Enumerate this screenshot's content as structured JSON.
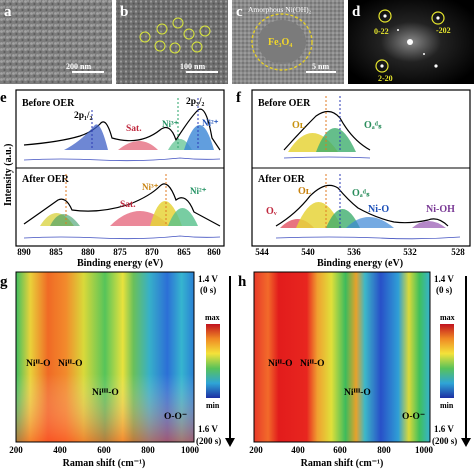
{
  "panels": {
    "a": {
      "label": "a",
      "scalebar": "200 nm"
    },
    "b": {
      "label": "b",
      "scalebar": "100 nm"
    },
    "c": {
      "label": "c",
      "phase_label": "Amorphous Ni(OH)₂",
      "core_label": "Fe₃O₄",
      "scalebar": "5 nm"
    },
    "d": {
      "label": "d",
      "spots": [
        "0-22",
        "-202",
        "2-20"
      ]
    },
    "e": {
      "label": "e",
      "top_title": "Before OER",
      "bottom_title": "After OER",
      "peak_2p12": "2p₁/₂",
      "peak_2p32": "2p₃/₂",
      "sat": "Sat.",
      "ni3": "Ni³⁺",
      "ni2": "Ni²⁺",
      "xlabel": "Binding energy (eV)",
      "ylabel": "Intensity (a.u.)",
      "ticks": [
        "890",
        "885",
        "880",
        "875",
        "870",
        "865",
        "860"
      ]
    },
    "f": {
      "label": "f",
      "top_title": "Before OER",
      "bottom_title": "After OER",
      "OL": "Oʟ",
      "Oads": "Oₐᵈₛ",
      "OV": "Oᵥ",
      "NiO": "Ni-O",
      "NiOH": "Ni-OH",
      "xlabel": "Binding energy (eV)",
      "ticks": [
        "544",
        "540",
        "536",
        "532",
        "528"
      ]
    },
    "g": {
      "label": "g",
      "top_right": "1.4 V",
      "top_right_sub": "(0 s)",
      "bottom_right": "1.6 V",
      "bottom_right_sub": "(200 s)",
      "cb_max": "max",
      "cb_min": "min",
      "ann1": "Niᴵᴵ-O",
      "ann2": "Niᴵᴵ-O",
      "ann3": "Niᴵᴵᴵ-O",
      "ann4": "O-O⁻",
      "xlabel": "Raman shift (cm⁻¹)",
      "ticks": [
        "200",
        "400",
        "600",
        "800",
        "1000"
      ]
    },
    "h": {
      "label": "h",
      "top_right": "1.4 V",
      "top_right_sub": "(0 s)",
      "bottom_right": "1.6 V",
      "bottom_right_sub": "(200 s)",
      "cb_max": "max",
      "cb_min": "min",
      "ann1": "Niᴵᴵ-O",
      "ann2": "Niᴵᴵ-O",
      "ann3": "Niᴵᴵᴵ-O",
      "ann4": "O-O⁻",
      "xlabel": "Raman shift (cm⁻¹)",
      "ticks": [
        "200",
        "400",
        "600",
        "800",
        "1000"
      ]
    }
  },
  "colors": {
    "red": "#e3342f",
    "yellow": "#e8d53a",
    "green": "#5cbf5c",
    "cyan": "#3ab3c9",
    "blue": "#2b58c9",
    "purple": "#9b5fb5"
  }
}
